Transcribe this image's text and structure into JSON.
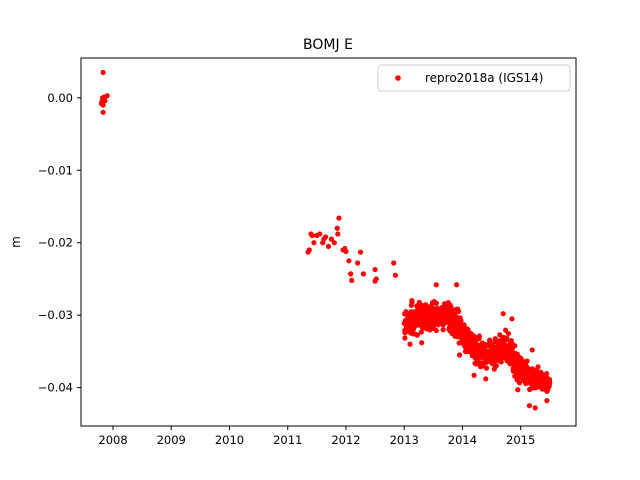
{
  "chart_data": {
    "type": "scatter",
    "title": "BOMJ E",
    "xlabel": "",
    "ylabel": "m",
    "xlim": [
      2007.45,
      2015.95
    ],
    "ylim": [
      -0.0453,
      0.0055
    ],
    "x_ticks": [
      2008,
      2009,
      2010,
      2011,
      2012,
      2013,
      2014,
      2015
    ],
    "x_tick_labels": [
      "2008",
      "2009",
      "2010",
      "2011",
      "2012",
      "2013",
      "2014",
      "2015"
    ],
    "y_ticks": [
      0.0,
      -0.01,
      -0.02,
      -0.03,
      -0.04
    ],
    "y_tick_labels": [
      "0.00",
      "−0.01",
      "−0.02",
      "−0.03",
      "−0.04"
    ],
    "grid": false,
    "legend_position": "top-right",
    "series": [
      {
        "name": "repro2018a (IGS14)",
        "color": "#ff0000",
        "marker": "circle",
        "points": [
          [
            2007.83,
            0.0035
          ],
          [
            2007.82,
            0.0
          ],
          [
            2007.81,
            -0.0005
          ],
          [
            2007.85,
            -0.0002
          ],
          [
            2007.8,
            -0.0008
          ],
          [
            2007.83,
            -0.001
          ],
          [
            2007.85,
            0.0001
          ],
          [
            2007.83,
            -0.002
          ],
          [
            2007.9,
            0.0003
          ],
          [
            2007.86,
            -0.0004
          ],
          [
            2011.35,
            -0.0213
          ],
          [
            2011.37,
            -0.021
          ],
          [
            2011.4,
            -0.0188
          ],
          [
            2011.42,
            -0.019
          ],
          [
            2011.45,
            -0.02
          ],
          [
            2011.5,
            -0.019
          ],
          [
            2011.55,
            -0.0188
          ],
          [
            2011.6,
            -0.02
          ],
          [
            2011.62,
            -0.0195
          ],
          [
            2011.65,
            -0.0192
          ],
          [
            2011.7,
            -0.0205
          ],
          [
            2011.75,
            -0.0195
          ],
          [
            2011.8,
            -0.02
          ],
          [
            2011.85,
            -0.018
          ],
          [
            2011.88,
            -0.0166
          ],
          [
            2011.86,
            -0.0188
          ],
          [
            2011.95,
            -0.021
          ],
          [
            2011.98,
            -0.0208
          ],
          [
            2012.0,
            -0.0212
          ],
          [
            2012.05,
            -0.0225
          ],
          [
            2012.08,
            -0.0243
          ],
          [
            2012.1,
            -0.0252
          ],
          [
            2012.2,
            -0.0228
          ],
          [
            2012.25,
            -0.0213
          ],
          [
            2012.3,
            -0.0243
          ],
          [
            2012.5,
            -0.0237
          ],
          [
            2012.52,
            -0.025
          ],
          [
            2012.5,
            -0.0253
          ],
          [
            2012.82,
            -0.0228
          ],
          [
            2012.85,
            -0.0245
          ]
        ],
        "dense_band": [
          [
            2013.0,
            -0.0285,
            -0.0335
          ],
          [
            2013.15,
            -0.0275,
            -0.0335
          ],
          [
            2013.3,
            -0.0278,
            -0.033
          ],
          [
            2013.45,
            -0.0275,
            -0.0325
          ],
          [
            2013.6,
            -0.028,
            -0.0325
          ],
          [
            2013.75,
            -0.0278,
            -0.0325
          ],
          [
            2013.9,
            -0.0285,
            -0.0345
          ],
          [
            2014.05,
            -0.0305,
            -0.036
          ],
          [
            2014.2,
            -0.0318,
            -0.0375
          ],
          [
            2014.35,
            -0.0325,
            -0.038
          ],
          [
            2014.5,
            -0.0325,
            -0.0385
          ],
          [
            2014.65,
            -0.0315,
            -0.0375
          ],
          [
            2014.8,
            -0.032,
            -0.0378
          ],
          [
            2014.95,
            -0.0345,
            -0.0395
          ],
          [
            2015.1,
            -0.0355,
            -0.0405
          ],
          [
            2015.25,
            -0.0365,
            -0.041
          ],
          [
            2015.38,
            -0.0375,
            -0.0408
          ],
          [
            2015.5,
            -0.038,
            -0.041
          ]
        ],
        "scattered_extremes": [
          [
            2013.55,
            -0.0258
          ],
          [
            2013.9,
            -0.0258
          ],
          [
            2013.1,
            -0.034
          ],
          [
            2013.3,
            -0.0338
          ],
          [
            2014.2,
            -0.0383
          ],
          [
            2014.4,
            -0.0388
          ],
          [
            2014.7,
            -0.0298
          ],
          [
            2014.85,
            -0.0305
          ],
          [
            2015.2,
            -0.0348
          ],
          [
            2015.15,
            -0.0425
          ],
          [
            2015.25,
            -0.0428
          ],
          [
            2015.45,
            -0.0418
          ],
          [
            2014.95,
            -0.0403
          ],
          [
            2015.05,
            -0.039
          ],
          [
            2014.6,
            -0.036
          ],
          [
            2013.95,
            -0.0355
          ]
        ]
      }
    ]
  }
}
